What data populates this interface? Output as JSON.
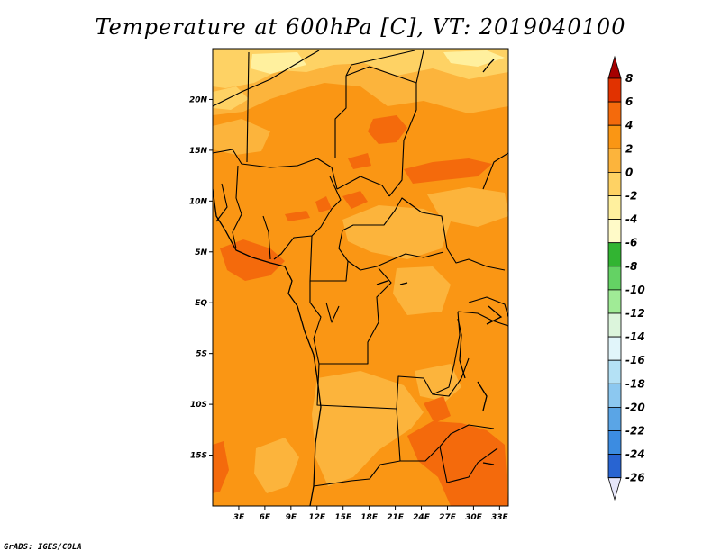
{
  "title": "Temperature at 600hPa [C], VT: 2019040100",
  "footer": "GrADS: IGES/COLA",
  "map": {
    "lon_range": [
      0,
      34
    ],
    "lat_range": [
      -20,
      25
    ],
    "lat_ticks": [
      {
        "value": 20,
        "label": "20N"
      },
      {
        "value": 15,
        "label": "15N"
      },
      {
        "value": 10,
        "label": "10N"
      },
      {
        "value": 5,
        "label": "5N"
      },
      {
        "value": 0,
        "label": "EQ"
      },
      {
        "value": -5,
        "label": "5S"
      },
      {
        "value": -10,
        "label": "10S"
      },
      {
        "value": -15,
        "label": "15S"
      }
    ],
    "lon_ticks": [
      {
        "value": 3,
        "label": "3E"
      },
      {
        "value": 6,
        "label": "6E"
      },
      {
        "value": 9,
        "label": "9E"
      },
      {
        "value": 12,
        "label": "12E"
      },
      {
        "value": 15,
        "label": "15E"
      },
      {
        "value": 18,
        "label": "18E"
      },
      {
        "value": 21,
        "label": "21E"
      },
      {
        "value": 24,
        "label": "24E"
      },
      {
        "value": 27,
        "label": "27E"
      },
      {
        "value": 30,
        "label": "30E"
      },
      {
        "value": 33,
        "label": "33E"
      }
    ]
  },
  "colorbar": {
    "labels": [
      "8",
      "6",
      "4",
      "2",
      "0",
      "-2",
      "-4",
      "-6",
      "-8",
      "-10",
      "-12",
      "-14",
      "-16",
      "-18",
      "-20",
      "-22",
      "-24",
      "-26"
    ],
    "colors": [
      "#a50000",
      "#e13200",
      "#f46a0c",
      "#fa9614",
      "#fcb43c",
      "#fed264",
      "#fff09e",
      "#fffac8",
      "#32b432",
      "#64d264",
      "#a0eb96",
      "#dcf5dc",
      "#e1f5fa",
      "#b4e1f5",
      "#8cc8f0",
      "#5aa5e6",
      "#3c8ce1",
      "#2864d2",
      "#1446b4",
      "#0a288c",
      "#05146e",
      "#e6e6fa"
    ]
  }
}
